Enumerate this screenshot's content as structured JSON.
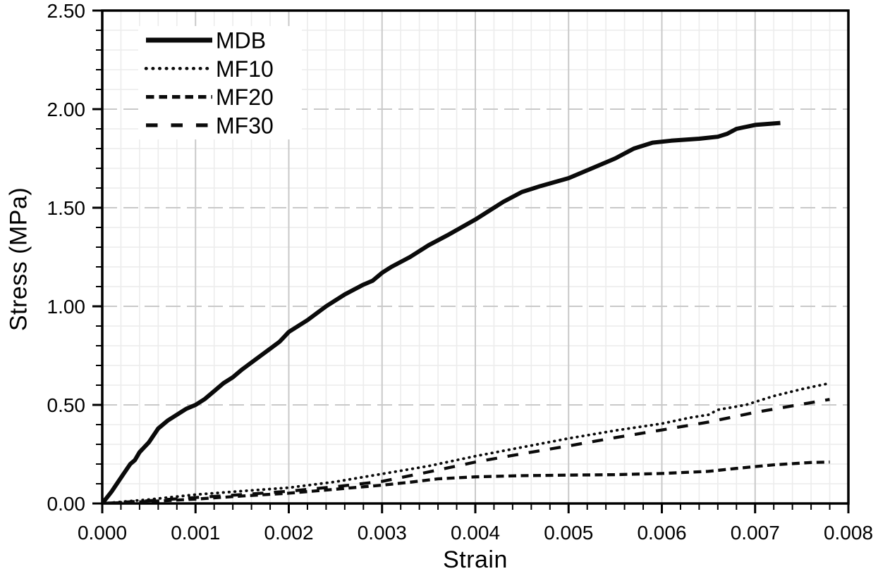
{
  "chart_data": {
    "type": "line",
    "title": "",
    "xlabel": "Strain",
    "ylabel": "Stress (MPa)",
    "xlim": [
      0,
      0.008
    ],
    "ylim": [
      0,
      2.5
    ],
    "x_major_ticks": [
      0,
      0.001,
      0.002,
      0.003,
      0.004,
      0.005,
      0.006,
      0.007,
      0.008
    ],
    "x_tick_labels": [
      "0.000",
      "0.001",
      "0.002",
      "0.003",
      "0.004",
      "0.005",
      "0.006",
      "0.007",
      "0.008"
    ],
    "y_major_ticks": [
      0,
      0.5,
      1.0,
      1.5,
      2.0,
      2.5
    ],
    "y_tick_labels": [
      "0.00",
      "0.50",
      "1.00",
      "1.50",
      "2.00",
      "2.50"
    ],
    "x_minor_step": 0.0002,
    "y_minor_step": 0.1,
    "grid": true,
    "legend_position": "top-left",
    "colors": {
      "line": "#0a0a0a",
      "frame": "#000000",
      "grid_minor": "#ececec",
      "grid_major": "#c9c9c9",
      "text": "#000000",
      "background": "#ffffff"
    },
    "series": [
      {
        "name": "MDB",
        "line_style": "solid",
        "points": [
          [
            0,
            0
          ],
          [
            0.0001,
            0.06
          ],
          [
            0.0002,
            0.13
          ],
          [
            0.0003,
            0.2
          ],
          [
            0.00035,
            0.22
          ],
          [
            0.0004,
            0.26
          ],
          [
            0.0005,
            0.31
          ],
          [
            0.0006,
            0.38
          ],
          [
            0.0007,
            0.42
          ],
          [
            0.0008,
            0.45
          ],
          [
            0.0009,
            0.48
          ],
          [
            0.001,
            0.5
          ],
          [
            0.0011,
            0.53
          ],
          [
            0.0012,
            0.57
          ],
          [
            0.0013,
            0.61
          ],
          [
            0.0014,
            0.64
          ],
          [
            0.0015,
            0.68
          ],
          [
            0.0017,
            0.75
          ],
          [
            0.0019,
            0.82
          ],
          [
            0.002,
            0.87
          ],
          [
            0.0022,
            0.93
          ],
          [
            0.0024,
            1.0
          ],
          [
            0.0026,
            1.06
          ],
          [
            0.0028,
            1.11
          ],
          [
            0.0029,
            1.13
          ],
          [
            0.003,
            1.17
          ],
          [
            0.0031,
            1.2
          ],
          [
            0.0033,
            1.25
          ],
          [
            0.0035,
            1.31
          ],
          [
            0.0037,
            1.36
          ],
          [
            0.004,
            1.44
          ],
          [
            0.0043,
            1.53
          ],
          [
            0.0045,
            1.58
          ],
          [
            0.0047,
            1.61
          ],
          [
            0.005,
            1.65
          ],
          [
            0.0053,
            1.71
          ],
          [
            0.0055,
            1.75
          ],
          [
            0.0057,
            1.8
          ],
          [
            0.0059,
            1.83
          ],
          [
            0.0061,
            1.84
          ],
          [
            0.0064,
            1.85
          ],
          [
            0.0066,
            1.86
          ],
          [
            0.0067,
            1.875
          ],
          [
            0.0068,
            1.9
          ],
          [
            0.007,
            1.92
          ],
          [
            0.00727,
            1.93
          ]
        ]
      },
      {
        "name": "MF10",
        "line_style": "dotted",
        "points": [
          [
            0,
            0
          ],
          [
            0.0003,
            0.012
          ],
          [
            0.0005,
            0.02
          ],
          [
            0.001,
            0.045
          ],
          [
            0.0015,
            0.063
          ],
          [
            0.002,
            0.08
          ],
          [
            0.0025,
            0.11
          ],
          [
            0.003,
            0.15
          ],
          [
            0.0035,
            0.19
          ],
          [
            0.004,
            0.24
          ],
          [
            0.0045,
            0.285
          ],
          [
            0.005,
            0.33
          ],
          [
            0.0055,
            0.37
          ],
          [
            0.006,
            0.405
          ],
          [
            0.0063,
            0.435
          ],
          [
            0.0065,
            0.45
          ],
          [
            0.0066,
            0.475
          ],
          [
            0.0069,
            0.5
          ],
          [
            0.0072,
            0.545
          ],
          [
            0.0075,
            0.58
          ],
          [
            0.0078,
            0.61
          ]
        ]
      },
      {
        "name": "MF20",
        "line_style": "dashed-short",
        "points": [
          [
            0,
            0
          ],
          [
            0.0005,
            0.01
          ],
          [
            0.001,
            0.022
          ],
          [
            0.0015,
            0.038
          ],
          [
            0.002,
            0.052
          ],
          [
            0.0025,
            0.072
          ],
          [
            0.003,
            0.093
          ],
          [
            0.0033,
            0.108
          ],
          [
            0.0036,
            0.125
          ],
          [
            0.004,
            0.135
          ],
          [
            0.0045,
            0.141
          ],
          [
            0.005,
            0.144
          ],
          [
            0.0055,
            0.146
          ],
          [
            0.006,
            0.152
          ],
          [
            0.0065,
            0.163
          ],
          [
            0.0068,
            0.178
          ],
          [
            0.0072,
            0.196
          ],
          [
            0.0076,
            0.208
          ],
          [
            0.0078,
            0.21
          ]
        ]
      },
      {
        "name": "MF30",
        "line_style": "dashed-long",
        "points": [
          [
            0,
            0
          ],
          [
            0.0005,
            0.014
          ],
          [
            0.001,
            0.03
          ],
          [
            0.0015,
            0.045
          ],
          [
            0.002,
            0.062
          ],
          [
            0.0025,
            0.085
          ],
          [
            0.003,
            0.112
          ],
          [
            0.0035,
            0.16
          ],
          [
            0.004,
            0.21
          ],
          [
            0.0045,
            0.252
          ],
          [
            0.005,
            0.292
          ],
          [
            0.0055,
            0.334
          ],
          [
            0.006,
            0.373
          ],
          [
            0.0065,
            0.413
          ],
          [
            0.007,
            0.462
          ],
          [
            0.0074,
            0.495
          ],
          [
            0.0078,
            0.528
          ]
        ]
      }
    ]
  }
}
